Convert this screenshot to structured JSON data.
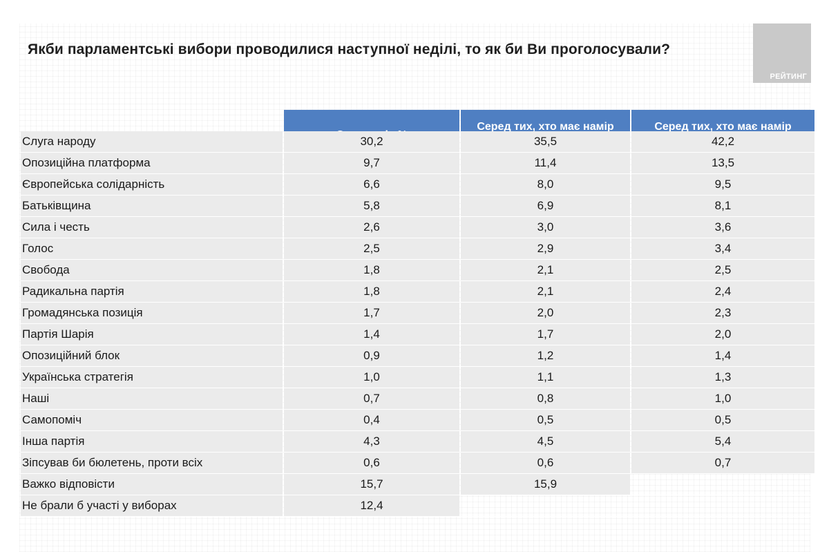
{
  "title": "Якби парламентські вибори проводилися наступної неділі, то як би Ви проголосували?",
  "logo_text": "РЕЙТИНГ",
  "columns": [
    "Серед усіх %",
    "Серед тих, хто має намір голосувати, %",
    "Серед тих, хто має намір голосувати і визначився, %"
  ],
  "rows": [
    {
      "label": "Слуга народу",
      "v1": "30,2",
      "v2": "35,5",
      "v3": "42,2"
    },
    {
      "label": "Опозиційна платформа",
      "v1": "9,7",
      "v2": "11,4",
      "v3": "13,5"
    },
    {
      "label": "Європейська солідарність",
      "v1": "6,6",
      "v2": "8,0",
      "v3": "9,5"
    },
    {
      "label": "Батьківщина",
      "v1": "5,8",
      "v2": "6,9",
      "v3": "8,1"
    },
    {
      "label": "Сила і честь",
      "v1": "2,6",
      "v2": "3,0",
      "v3": "3,6"
    },
    {
      "label": "Голос",
      "v1": "2,5",
      "v2": "2,9",
      "v3": "3,4"
    },
    {
      "label": "Свобода",
      "v1": "1,8",
      "v2": "2,1",
      "v3": "2,5"
    },
    {
      "label": "Радикальна партія",
      "v1": "1,8",
      "v2": "2,1",
      "v3": "2,4"
    },
    {
      "label": "Громадянська позиція",
      "v1": "1,7",
      "v2": "2,0",
      "v3": "2,3"
    },
    {
      "label": "Партія Шарія",
      "v1": "1,4",
      "v2": "1,7",
      "v3": "2,0"
    },
    {
      "label": "Опозиційний блок",
      "v1": "0,9",
      "v2": "1,2",
      "v3": "1,4"
    },
    {
      "label": "Українська стратегія",
      "v1": "1,0",
      "v2": "1,1",
      "v3": "1,3"
    },
    {
      "label": "Наші",
      "v1": "0,7",
      "v2": "0,8",
      "v3": "1,0"
    },
    {
      "label": "Самопоміч",
      "v1": "0,4",
      "v2": "0,5",
      "v3": "0,5"
    },
    {
      "label": "Інша партія",
      "v1": "4,3",
      "v2": "4,5",
      "v3": "5,4"
    },
    {
      "label": "Зіпсував би бюлетень, проти всіх",
      "v1": "0,6",
      "v2": "0,6",
      "v3": "0,7"
    },
    {
      "label": "Важко відповісти",
      "v1": "15,7",
      "v2": "15,9",
      "v3": null
    },
    {
      "label": "Не брали б участі у виборах",
      "v1": "12,4",
      "v2": null,
      "v3": null
    }
  ]
}
